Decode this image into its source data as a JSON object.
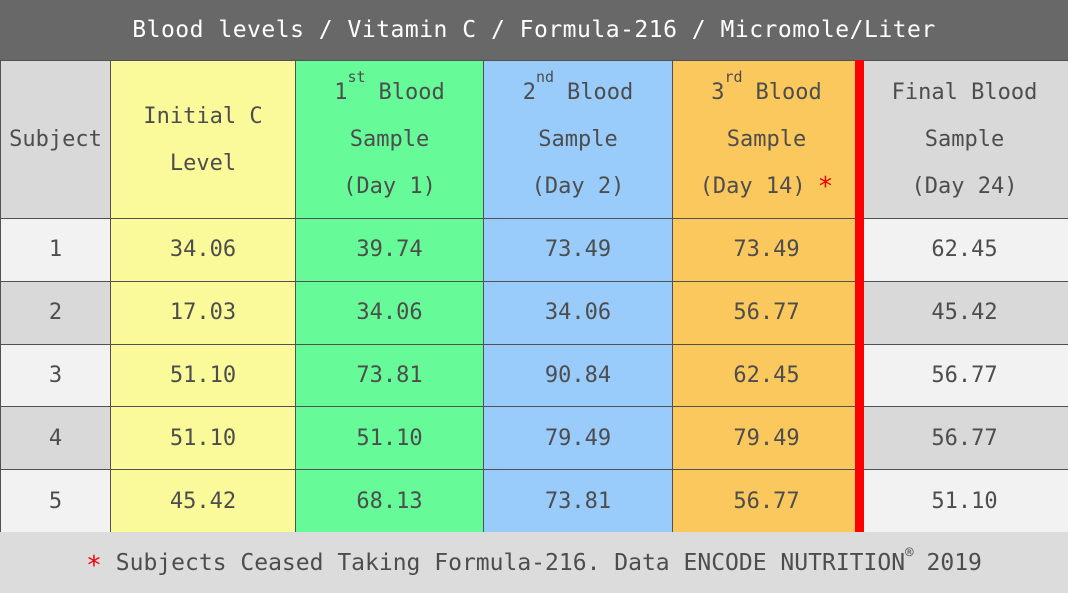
{
  "title": "Blood levels / Vitamin C / Formula-216 / Micromole/Liter",
  "colors": {
    "title_bar_bg": "#686868",
    "column_yellow": "#fafa9b",
    "column_green": "#66fa99",
    "column_blue": "#99ccfb",
    "column_orange": "#fbc85d",
    "header_gray": "#d9d9d9",
    "row_light": "#f2f2f2",
    "row_dark": "#d9d9d9",
    "divider_red": "#ff0000",
    "accent_red": "#ee0000",
    "text_dark": "#4d4d4d"
  },
  "table": {
    "headers": {
      "subject": "Subject",
      "initial": {
        "line1": "Initial C",
        "line2": "Level"
      },
      "s1": {
        "num": "1",
        "sup": "st",
        "rest": "Blood",
        "line2": "Sample",
        "line3": "(Day 1)"
      },
      "s2": {
        "num": "2",
        "sup": "nd",
        "rest": "Blood",
        "line2": "Sample",
        "line3": "(Day 2)"
      },
      "s3": {
        "num": "3",
        "sup": "rd",
        "rest": "Blood",
        "line2": "Sample",
        "line3": "(Day 14)",
        "mark": "*"
      },
      "final": {
        "line1": "Final Blood",
        "line2": "Sample",
        "line3": "(Day 24)"
      }
    },
    "rows": [
      {
        "subject": "1",
        "values": [
          "34.06",
          "39.74",
          "73.49",
          "73.49",
          "62.45"
        ]
      },
      {
        "subject": "2",
        "values": [
          "17.03",
          "34.06",
          "34.06",
          "56.77",
          "45.42"
        ]
      },
      {
        "subject": "3",
        "values": [
          "51.10",
          "73.81",
          "90.84",
          "62.45",
          "56.77"
        ]
      },
      {
        "subject": "4",
        "values": [
          "51.10",
          "51.10",
          "79.49",
          "79.49",
          "56.77"
        ]
      },
      {
        "subject": "5",
        "values": [
          "45.42",
          "68.13",
          "73.81",
          "56.77",
          "51.10"
        ]
      }
    ]
  },
  "footer": {
    "asterisk": "*",
    "text": "Subjects Ceased Taking Formula-216. Data ENCODE NUTRITION",
    "registered": "®",
    "year": "2019"
  },
  "chart_data": {
    "type": "table",
    "title": "Blood levels / Vitamin C / Formula-216 / Micromole/Liter",
    "units": "Micromole/Liter",
    "columns": [
      "Subject",
      "Initial C Level",
      "1st Blood Sample (Day 1)",
      "2nd Blood Sample (Day 2)",
      "3rd Blood Sample (Day 14) *",
      "Final Blood Sample (Day 24)"
    ],
    "rows": [
      [
        1,
        34.06,
        39.74,
        73.49,
        73.49,
        62.45
      ],
      [
        2,
        17.03,
        34.06,
        34.06,
        56.77,
        45.42
      ],
      [
        3,
        51.1,
        73.81,
        90.84,
        62.45,
        56.77
      ],
      [
        4,
        51.1,
        51.1,
        79.49,
        79.49,
        56.77
      ],
      [
        5,
        45.42,
        68.13,
        73.81,
        56.77,
        51.1
      ]
    ],
    "footnote": "* Subjects Ceased Taking Formula-216. Data ENCODE NUTRITION® 2019",
    "layout_hints": {
      "red_divider_before_column": "Final Blood Sample (Day 24)"
    }
  }
}
